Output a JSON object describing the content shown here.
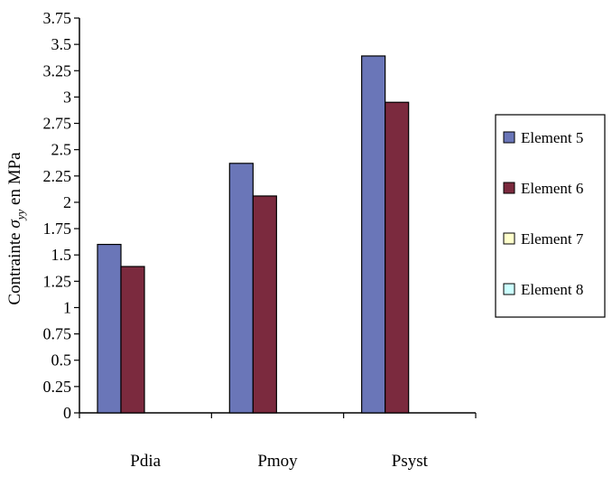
{
  "chart_data": {
    "type": "bar",
    "title": "",
    "xlabel": "",
    "ylabel": {
      "prefix": "Contrainte ",
      "symbol": "σ",
      "subscript": "yy",
      "suffix": " en MPa"
    },
    "ylim": [
      0,
      3.75
    ],
    "yticks": [
      "0",
      "0.25",
      "0.5",
      "0.75",
      "1",
      "1.25",
      "1.5",
      "1.75",
      "2",
      "2.25",
      "2.5",
      "2.75",
      "3",
      "3.25",
      "3.5",
      "3.75"
    ],
    "categories": [
      "Pdia",
      "Pmoy",
      "Psyst"
    ],
    "series": [
      {
        "name": "Element 5",
        "color": "#6a76b8",
        "values": [
          1.6,
          2.37,
          3.39
        ]
      },
      {
        "name": "Element 6",
        "color": "#7b2a3e",
        "values": [
          1.39,
          2.06,
          2.95
        ]
      },
      {
        "name": "Element 7",
        "color": "#ffffcc",
        "values": [
          0,
          0,
          0
        ]
      },
      {
        "name": "Element 8",
        "color": "#ccffff",
        "values": [
          0,
          0,
          0
        ]
      }
    ],
    "grid": false,
    "legend_position": "right"
  }
}
